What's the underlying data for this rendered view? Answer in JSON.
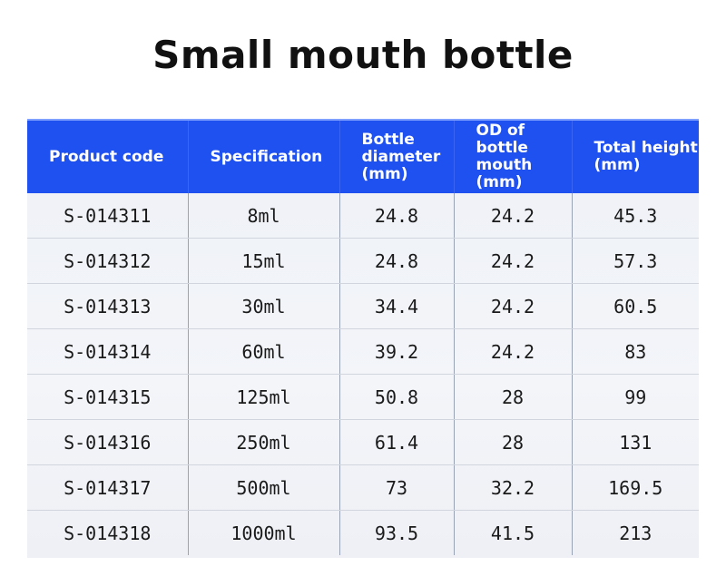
{
  "title": "Small mouth bottle",
  "table": {
    "headers": [
      "Product code",
      "Specification",
      "Bottle\ndiameter\n(mm)",
      "OD of bottle\nmouth\n(mm)",
      "Total height\n(mm)"
    ],
    "rows": [
      [
        "S-014311",
        "8ml",
        "24.8",
        "24.2",
        "45.3"
      ],
      [
        "S-014312",
        "15ml",
        "24.8",
        "24.2",
        "57.3"
      ],
      [
        "S-014313",
        "30ml",
        "34.4",
        "24.2",
        "60.5"
      ],
      [
        "S-014314",
        "60ml",
        "39.2",
        "24.2",
        "83"
      ],
      [
        "S-014315",
        "125ml",
        "50.8",
        "28",
        "99"
      ],
      [
        "S-014316",
        "250ml",
        "61.4",
        "28",
        "131"
      ],
      [
        "S-014317",
        "500ml",
        "73",
        "32.2",
        "169.5"
      ],
      [
        "S-014318",
        "1000ml",
        "93.5",
        "41.5",
        "213"
      ]
    ]
  },
  "colors": {
    "header_bg": "#1f50f0",
    "header_text": "#ffffff",
    "body_text": "#1a1a1a"
  }
}
